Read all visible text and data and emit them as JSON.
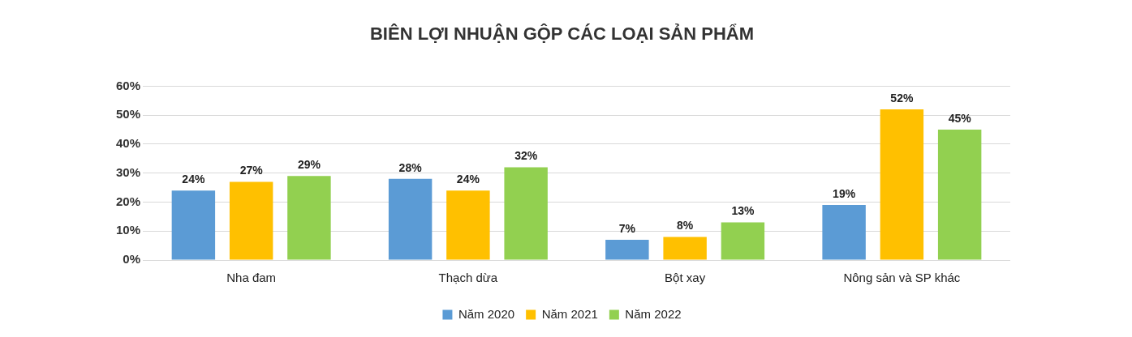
{
  "chart_data": {
    "type": "bar",
    "title": "BIÊN LỢI NHUẬN GỘP CÁC LOẠI SẢN PHẨM",
    "categories": [
      "Nha đam",
      "Thạch dừa",
      "Bột xay",
      "Nông sản và SP khác"
    ],
    "series": [
      {
        "name": "Năm 2020",
        "color": "#5b9bd5",
        "values": [
          24,
          28,
          7,
          19
        ],
        "value_labels": [
          "24%",
          "28%",
          "7%",
          "19%"
        ]
      },
      {
        "name": "Năm 2021",
        "color": "#ffc000",
        "values": [
          27,
          24,
          8,
          52
        ],
        "value_labels": [
          "27%",
          "24%",
          "8%",
          "52%"
        ]
      },
      {
        "name": "Năm 2022",
        "color": "#92d050",
        "values": [
          29,
          32,
          13,
          45
        ],
        "value_labels": [
          "29%",
          "32%",
          "13%",
          "45%"
        ]
      }
    ],
    "ylim": [
      0,
      60
    ],
    "yticks": [
      {
        "value": 0,
        "label": "0%"
      },
      {
        "value": 10,
        "label": "10%"
      },
      {
        "value": 20,
        "label": "20%"
      },
      {
        "value": 30,
        "label": "30%"
      },
      {
        "value": 40,
        "label": "40%"
      },
      {
        "value": 50,
        "label": "50%"
      },
      {
        "value": 60,
        "label": "60%"
      }
    ],
    "grid": "y",
    "legend": "bottom"
  }
}
